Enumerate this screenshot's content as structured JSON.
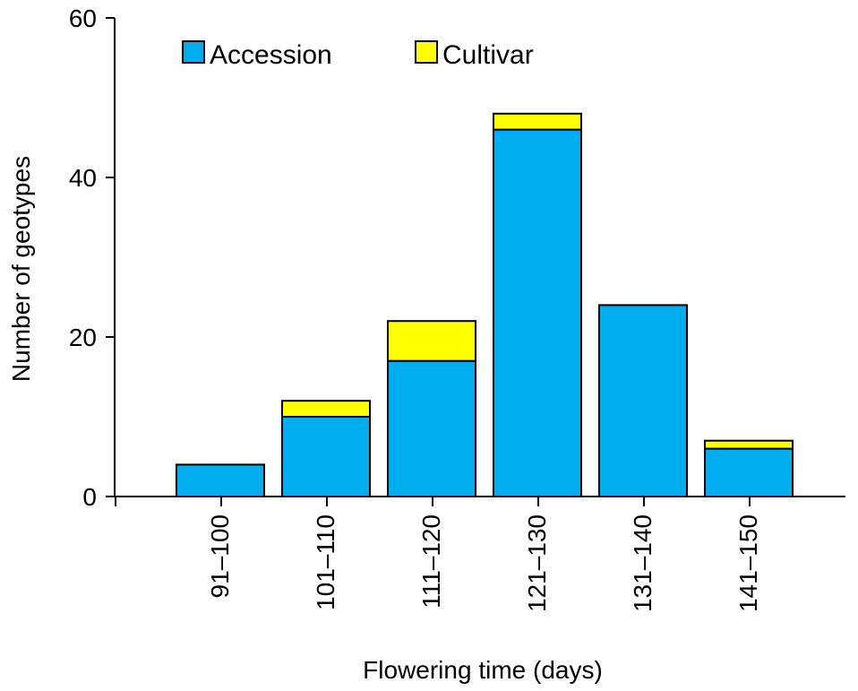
{
  "chart_data": {
    "type": "bar",
    "stacked": true,
    "categories": [
      "91–100",
      "101–110",
      "111–120",
      "121–130",
      "131–140",
      "141–150"
    ],
    "series": [
      {
        "name": "Accession",
        "values": [
          4,
          10,
          17,
          46,
          24,
          6
        ],
        "color": "#00aeef"
      },
      {
        "name": "Cultivar",
        "values": [
          0,
          2,
          5,
          2,
          0,
          1
        ],
        "color": "#ffff00"
      }
    ],
    "xlabel": "Flowering time (days)",
    "ylabel": "Number of geotypes",
    "ylim": [
      0,
      60
    ],
    "yticks": [
      "0",
      "20",
      "40",
      "60"
    ],
    "legend_position": "top-left",
    "grid": false
  }
}
